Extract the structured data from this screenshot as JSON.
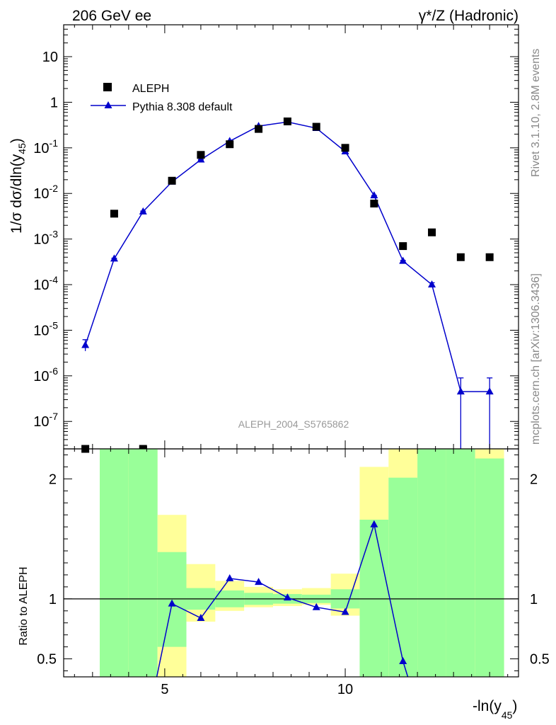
{
  "header": {
    "left": "206 GeV ee",
    "right": "γ*/Z (Hadronic)"
  },
  "side": {
    "rivet": "Rivet 3.1.10,  2.8M events",
    "mcplots": "mcplots.cern.ch [arXiv:1306.3436]"
  },
  "chart_data": {
    "type": "scatter",
    "title": "",
    "analysis_label": "ALEPH_2004_S5765862",
    "xlabel": "-ln(y45)",
    "xlabel_main": "-ln(y",
    "xlabel_sub": "45",
    "xlabel_end": ")",
    "ylabel": "1/σ dσ/dln(y45)",
    "ylabel_main": "1/σ  dσ/dln(y",
    "ylabel_sub": "45",
    "ylabel_end": ")",
    "xlim": [
      2.2,
      14.8
    ],
    "x_ticks": [
      5,
      10
    ],
    "x_tick_labels": [
      "5",
      "10"
    ],
    "upper": {
      "scale": "log",
      "ylim": [
        2.5e-08,
        50
      ],
      "y_ticks": [
        1e-07,
        1e-06,
        1e-05,
        0.0001,
        0.001,
        0.01,
        0.1,
        1,
        10
      ],
      "y_tick_labels": [
        {
          "base": "10",
          "exp": "-7"
        },
        {
          "base": "10",
          "exp": "-6"
        },
        {
          "base": "10",
          "exp": "-5"
        },
        {
          "base": "10",
          "exp": "-4"
        },
        {
          "base": "10",
          "exp": "-3"
        },
        {
          "base": "10",
          "exp": "-2"
        },
        {
          "base": "10",
          "exp": "-1"
        },
        {
          "base": "1",
          "exp": ""
        },
        {
          "base": "10",
          "exp": ""
        }
      ]
    },
    "lower": {
      "ylabel": "Ratio to ALEPH",
      "ylim": [
        0.35,
        2.25
      ],
      "y_ticks": [
        0.5,
        1,
        2
      ],
      "y_tick_labels": [
        "0.5",
        "1",
        "2"
      ]
    },
    "legend": {
      "placement": "top-left",
      "entries": [
        "ALEPH",
        "Pythia 8.308 default"
      ]
    },
    "colors": {
      "data": "#000000",
      "mc": "#0000cc",
      "band_inner": "#99ff99",
      "band_outer": "#ffff99"
    },
    "series": [
      {
        "name": "ALEPH",
        "x": [
          2.8,
          3.6,
          4.4,
          5.2,
          6.0,
          6.8,
          7.6,
          8.4,
          9.2,
          10.0,
          10.8,
          11.6,
          12.4,
          13.2,
          14.0
        ],
        "values": [
          2.5e-08,
          0.0036,
          2.5e-08,
          0.019,
          0.07,
          0.12,
          0.26,
          0.38,
          0.29,
          0.1,
          0.006,
          0.0007,
          0.0014,
          0.0004,
          0.0004
        ]
      },
      {
        "name": "Pythia 8.308 default",
        "x": [
          2.8,
          3.6,
          4.4,
          5.2,
          6.0,
          6.8,
          7.6,
          8.4,
          9.2,
          10.0,
          10.8,
          11.6,
          12.4,
          13.2,
          14.0
        ],
        "values": [
          4.7e-06,
          0.00037,
          0.004,
          0.018,
          0.055,
          0.14,
          0.3,
          0.37,
          0.27,
          0.083,
          0.009,
          0.00033,
          0.0001,
          4.5e-07,
          4.5e-07
        ],
        "err_low": [
          3.5e-06,
          0.00036,
          0.0039,
          0.0178,
          0.0547,
          0.1395,
          0.2995,
          0.3695,
          0.2695,
          0.0828,
          0.00895,
          0.00032,
          9e-05,
          1e-09,
          1e-09
        ],
        "err_high": [
          6.2e-06,
          0.00038,
          0.0041,
          0.0182,
          0.0553,
          0.1405,
          0.3005,
          0.3705,
          0.2705,
          0.0832,
          0.00905,
          0.00034,
          0.00011,
          9e-07,
          9e-07
        ]
      }
    ],
    "ratio": {
      "x": [
        2.8,
        3.6,
        4.4,
        5.2,
        6.0,
        6.8,
        7.6,
        8.4,
        9.2,
        10.0,
        10.8,
        11.6,
        12.4,
        13.2,
        14.0
      ],
      "values": [
        null,
        null,
        null,
        0.96,
        0.84,
        1.17,
        1.14,
        1.01,
        0.93,
        0.89,
        1.62,
        0.48,
        null,
        null,
        null
      ]
    },
    "bands": {
      "edges": [
        3.2,
        4.0,
        4.8,
        5.6,
        6.4,
        7.2,
        8.0,
        8.8,
        9.6,
        10.4,
        11.2,
        12.0,
        12.8,
        13.6,
        14.4
      ],
      "inner": [
        [
          0.35,
          2.25
        ],
        [
          0.35,
          2.25
        ],
        [
          0.6,
          1.39
        ],
        [
          0.91,
          1.09
        ],
        [
          0.93,
          1.07
        ],
        [
          0.95,
          1.05
        ],
        [
          0.96,
          1.04
        ],
        [
          0.965,
          1.035
        ],
        [
          0.92,
          1.08
        ],
        [
          0.35,
          1.66
        ],
        [
          0.35,
          2.01
        ],
        [
          0.35,
          2.25
        ],
        [
          0.35,
          2.25
        ],
        [
          0.35,
          2.17
        ]
      ],
      "outer": [
        [
          0.35,
          2.25
        ],
        [
          0.35,
          2.25
        ],
        [
          0.35,
          1.7
        ],
        [
          0.81,
          1.29
        ],
        [
          0.9,
          1.15
        ],
        [
          0.93,
          1.1
        ],
        [
          0.94,
          1.08
        ],
        [
          0.95,
          1.09
        ],
        [
          0.86,
          1.21
        ],
        [
          0.35,
          2.1
        ],
        [
          0.35,
          2.25
        ],
        [
          0.35,
          2.25
        ],
        [
          0.35,
          2.25
        ],
        [
          0.35,
          2.25
        ]
      ]
    }
  }
}
